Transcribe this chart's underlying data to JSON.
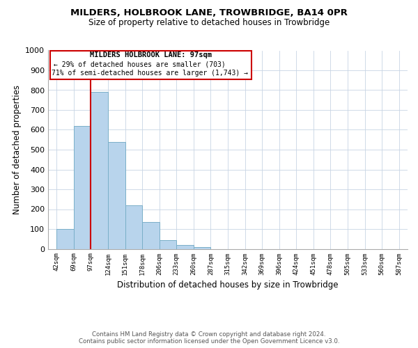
{
  "title": "MILDERS, HOLBROOK LANE, TROWBRIDGE, BA14 0PR",
  "subtitle": "Size of property relative to detached houses in Trowbridge",
  "xlabel": "Distribution of detached houses by size in Trowbridge",
  "ylabel": "Number of detached properties",
  "footer_line1": "Contains HM Land Registry data © Crown copyright and database right 2024.",
  "footer_line2": "Contains public sector information licensed under the Open Government Licence v3.0.",
  "tick_labels": [
    "42sqm",
    "69sqm",
    "97sqm",
    "124sqm",
    "151sqm",
    "178sqm",
    "206sqm",
    "233sqm",
    "260sqm",
    "287sqm",
    "315sqm",
    "342sqm",
    "369sqm",
    "396sqm",
    "424sqm",
    "451sqm",
    "478sqm",
    "505sqm",
    "533sqm",
    "560sqm",
    "587sqm"
  ],
  "bar_values": [
    100,
    620,
    790,
    540,
    220,
    135,
    45,
    20,
    10,
    0,
    0,
    0,
    0,
    0,
    0,
    0,
    0,
    0,
    0,
    0
  ],
  "bar_color": "#b8d4ec",
  "bar_edge_color": "#7aafc8",
  "red_line_x": 2,
  "annotation_title": "MILDERS HOLBROOK LANE: 97sqm",
  "annotation_line2": "← 29% of detached houses are smaller (703)",
  "annotation_line3": "71% of semi-detached houses are larger (1,743) →",
  "annotation_box_color": "#ffffff",
  "annotation_box_edge_color": "#cc0000",
  "red_line_color": "#cc0000",
  "ylim": [
    0,
    1000
  ],
  "yticks": [
    0,
    100,
    200,
    300,
    400,
    500,
    600,
    700,
    800,
    900,
    1000
  ],
  "background_color": "#ffffff",
  "grid_color": "#c8d4e4"
}
